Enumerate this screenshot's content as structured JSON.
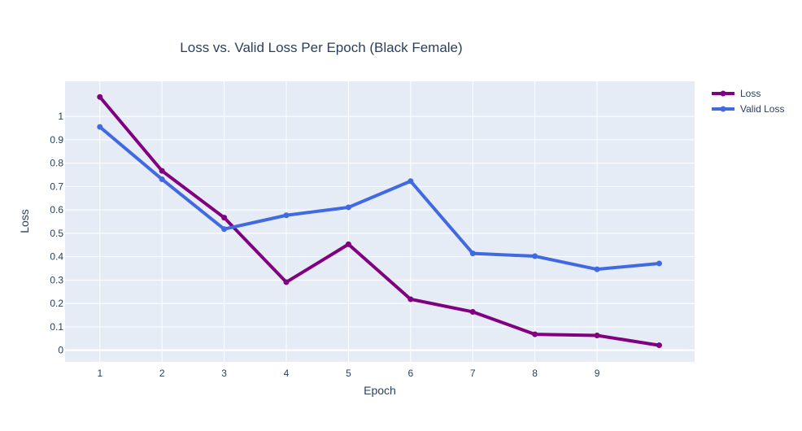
{
  "chart_data": {
    "type": "line",
    "title": "Loss vs. Valid Loss Per Epoch (Black Female)",
    "xlabel": "Epoch",
    "ylabel": "Loss",
    "x": [
      1,
      2,
      3,
      4,
      5,
      6,
      7,
      8,
      9,
      10
    ],
    "x_ticks": [
      "1",
      "2",
      "3",
      "4",
      "5",
      "6",
      "7",
      "8",
      "9"
    ],
    "y_ticks": [
      "0",
      "0.1",
      "0.2",
      "0.3",
      "0.4",
      "0.5",
      "0.6",
      "0.7",
      "0.8",
      "0.9",
      "1"
    ],
    "xlim": [
      0.44,
      10.57
    ],
    "ylim": [
      -0.05,
      1.15
    ],
    "grid": true,
    "legend_position": "top-right",
    "plot_background": "#e5ecf6",
    "series": [
      {
        "name": "Loss",
        "color": "#800080",
        "values": [
          1.083,
          0.767,
          0.567,
          0.291,
          0.453,
          0.218,
          0.164,
          0.068,
          0.063,
          0.021
        ]
      },
      {
        "name": "Valid Loss",
        "color": "#4169e1",
        "values": [
          0.955,
          0.731,
          0.518,
          0.577,
          0.611,
          0.723,
          0.414,
          0.402,
          0.346,
          0.371
        ]
      }
    ]
  }
}
